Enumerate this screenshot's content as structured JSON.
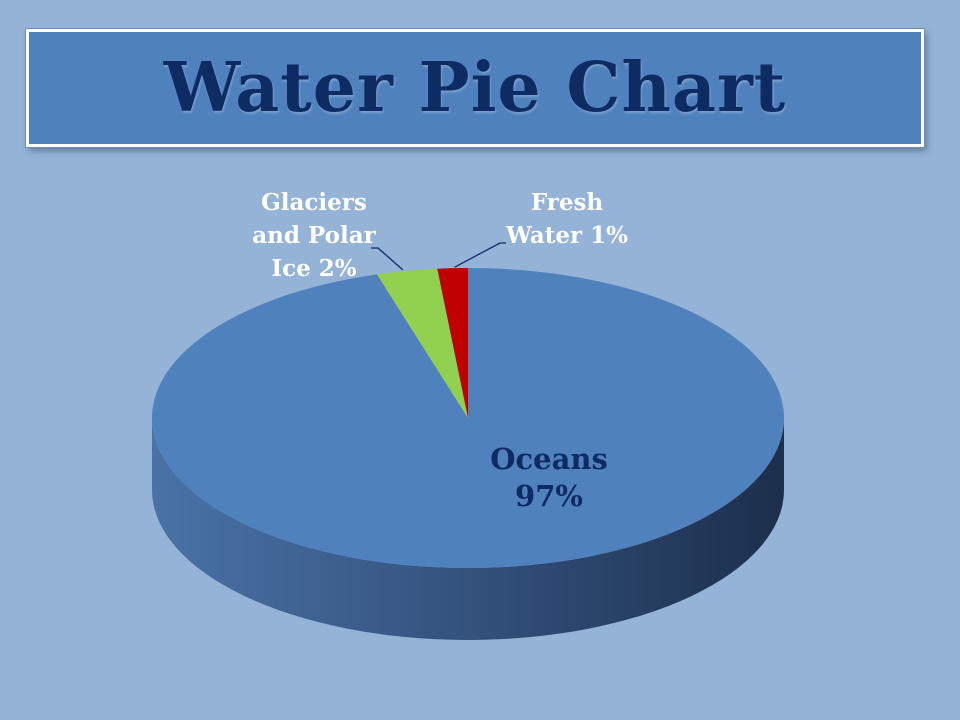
{
  "title": "Water Pie Chart",
  "colors": {
    "background": "#95b3d7",
    "title_box": "#4f81bd",
    "title_text": "#0f2b63",
    "label_light": "#ffffff",
    "label_dark": "#0f2b63"
  },
  "chart_data": {
    "type": "pie",
    "style": "3d",
    "slices": [
      {
        "label": "Oceans",
        "value": 97,
        "color": "#4f81bd",
        "label_lines": [
          "Oceans",
          "97%"
        ]
      },
      {
        "label": "Glaciers and Polar Ice",
        "value": 2,
        "color": "#92d050",
        "label_lines": [
          "Glaciers",
          "and Polar",
          "Ice 2%"
        ]
      },
      {
        "label": "Fresh Water",
        "value": 1,
        "color": "#c00000",
        "label_lines": [
          "Fresh",
          "Water 1%"
        ]
      }
    ]
  }
}
